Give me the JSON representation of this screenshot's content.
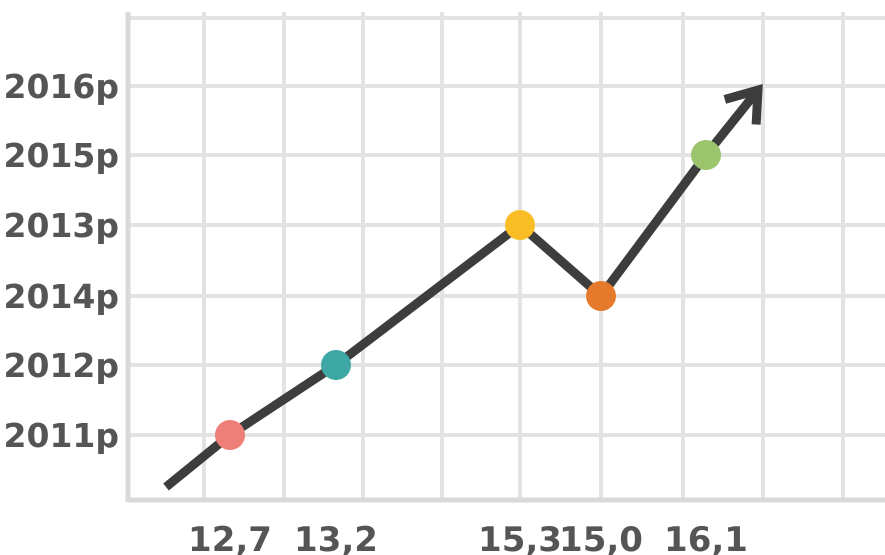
{
  "chart_data": {
    "type": "line",
    "y_tick_labels": [
      "2011р",
      "2012р",
      "2014р",
      "2013р",
      "2015р",
      "2016р"
    ],
    "x_tick_labels": [
      "12,7",
      "13,2",
      "15,3",
      "15,0",
      "16,1"
    ],
    "points": [
      {
        "x": "12,7",
        "y": "2011р",
        "color": "#ee7e78"
      },
      {
        "x": "13,2",
        "y": "2012р",
        "color": "#3ea8a5"
      },
      {
        "x": "15,3",
        "y": "2013р",
        "color": "#f9be26"
      },
      {
        "x": "15,0",
        "y": "2014р",
        "color": "#e57a2c"
      },
      {
        "x": "16,1",
        "y": "2015р",
        "color": "#9cc46c"
      }
    ],
    "grid": true,
    "trend_arrow": true,
    "colors": {
      "line": "#3d3d3d",
      "grid": "#e3e3e3",
      "axis": "#d9d9d9",
      "label": "#555555"
    }
  }
}
